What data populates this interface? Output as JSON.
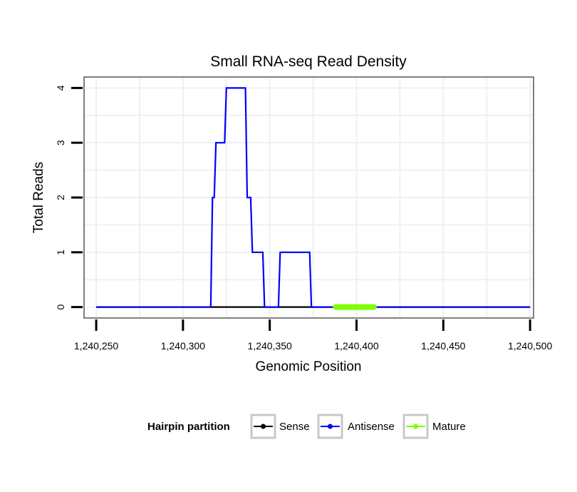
{
  "chart_data": {
    "type": "line",
    "title": "Small RNA-seq Read Density",
    "xlabel": "Genomic Position",
    "ylabel": "Total Reads",
    "xlim": [
      1240243,
      1240502
    ],
    "ylim": [
      -0.2,
      4.2
    ],
    "x_ticks": [
      1240250,
      1240300,
      1240350,
      1240400,
      1240450,
      1240500
    ],
    "x_tick_labels": [
      "1,240,250",
      "1,240,300",
      "1,240,350",
      "1,240,400",
      "1,240,450",
      "1,240,500"
    ],
    "y_ticks": [
      0,
      1,
      2,
      3,
      4
    ],
    "y_tick_labels": [
      "0",
      "1",
      "2",
      "3",
      "4"
    ],
    "grid": true,
    "legend": {
      "title": "Hairpin partition",
      "position": "bottom",
      "entries": [
        "Sense",
        "Antisense",
        "Mature"
      ]
    },
    "series": [
      {
        "name": "Sense",
        "color": "#000000",
        "x": [
          1240250,
          1240500
        ],
        "y": [
          0,
          0
        ]
      },
      {
        "name": "Antisense",
        "color": "#0000ff",
        "x": [
          1240250,
          1240316,
          1240317,
          1240318,
          1240319,
          1240321,
          1240322,
          1240324,
          1240325,
          1240336,
          1240337,
          1240339,
          1240340,
          1240341,
          1240342,
          1240346,
          1240347,
          1240355,
          1240356,
          1240373,
          1240374,
          1240500
        ],
        "y": [
          0,
          0,
          2,
          2,
          3,
          3,
          3,
          3,
          4,
          4,
          2,
          2,
          1,
          1,
          1,
          1,
          0,
          0,
          1,
          1,
          0,
          0
        ]
      },
      {
        "name": "Mature",
        "color": "#7fff00",
        "x": [
          1240388,
          1240410
        ],
        "y": [
          0,
          0
        ]
      }
    ]
  }
}
